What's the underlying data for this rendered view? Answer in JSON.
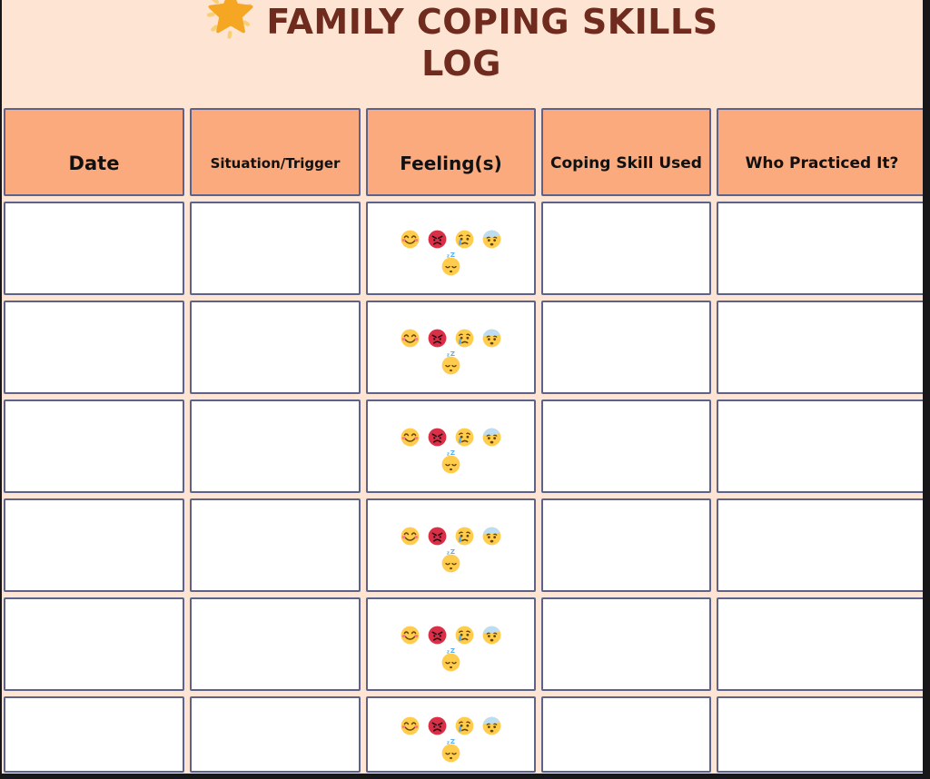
{
  "title": {
    "line1": "FAMILY COPING SKILLS",
    "line2": "LOG",
    "star_icon": "glowing-star"
  },
  "table": {
    "headers": [
      "Date",
      "Situation/Trigger",
      "Feeling(s)",
      "Coping Skill Used",
      "Who Practiced It?"
    ],
    "rows": [
      {
        "date": "",
        "situation_trigger": "",
        "feelings": [
          "smiling-face",
          "angry-face",
          "crying-face",
          "fearful-face",
          "sleeping-face"
        ],
        "coping_skill_used": "",
        "who_practiced_it": ""
      },
      {
        "date": "",
        "situation_trigger": "",
        "feelings": [
          "smiling-face",
          "angry-face",
          "crying-face",
          "fearful-face",
          "sleeping-face"
        ],
        "coping_skill_used": "",
        "who_practiced_it": ""
      },
      {
        "date": "",
        "situation_trigger": "",
        "feelings": [
          "smiling-face",
          "angry-face",
          "crying-face",
          "fearful-face",
          "sleeping-face"
        ],
        "coping_skill_used": "",
        "who_practiced_it": ""
      },
      {
        "date": "",
        "situation_trigger": "",
        "feelings": [
          "smiling-face",
          "angry-face",
          "crying-face",
          "fearful-face",
          "sleeping-face"
        ],
        "coping_skill_used": "",
        "who_practiced_it": ""
      },
      {
        "date": "",
        "situation_trigger": "",
        "feelings": [
          "smiling-face",
          "angry-face",
          "crying-face",
          "fearful-face",
          "sleeping-face"
        ],
        "coping_skill_used": "",
        "who_practiced_it": ""
      },
      {
        "date": "",
        "situation_trigger": "",
        "feelings": [
          "smiling-face",
          "angry-face",
          "crying-face",
          "fearful-face",
          "sleeping-face"
        ],
        "coping_skill_used": "",
        "who_practiced_it": ""
      }
    ]
  },
  "colors": {
    "page_bg": "#FDE4D3",
    "header_cell_bg": "#FBAA7D",
    "cell_bg": "#FFFFFF",
    "cell_border": "#5D628A",
    "title_text": "#6E2B1E",
    "header_text": "#111111",
    "screen_edge": "#17171A",
    "emoji_yellow": "#FFCC4D",
    "emoji_angry_red": "#DA2F47",
    "emoji_feature_brown": "#664500",
    "emoji_tear_blue": "#5DADEC",
    "emoji_cheek_pink": "#FF7892",
    "emoji_fear_blue": "#BDDDF4",
    "star_orange": "#F5A623",
    "star_ray_yellow": "#F8CF75"
  }
}
